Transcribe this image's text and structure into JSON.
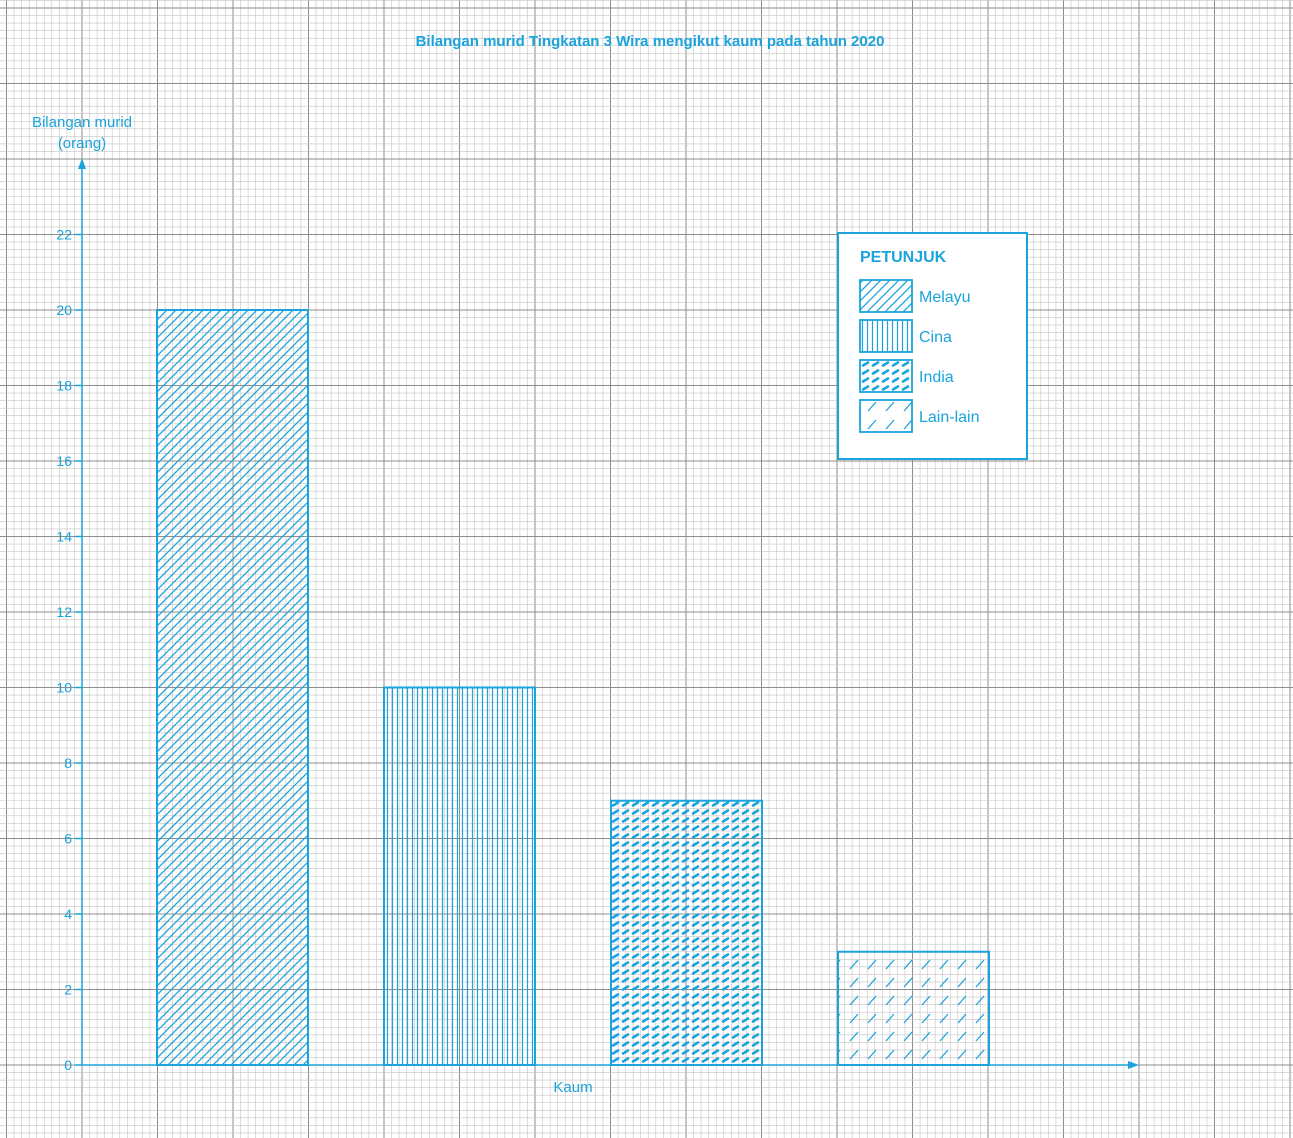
{
  "chart_data": {
    "type": "bar",
    "title": "Bilangan murid Tingkatan 3 Wira mengikut kaum pada tahun 2020",
    "ylabel_line1": "Bilangan murid",
    "ylabel_line2": "(orang)",
    "xlabel": "Kaum",
    "categories": [
      "Melayu",
      "Cina",
      "India",
      "Lain-lain"
    ],
    "values": [
      20,
      10,
      7,
      3
    ],
    "patterns": [
      "diagonal",
      "vertical",
      "dash",
      "sparse-diagonal"
    ],
    "ylim": [
      0,
      23
    ],
    "yticks": [
      0,
      2,
      4,
      6,
      8,
      10,
      12,
      14,
      16,
      18,
      20,
      22
    ],
    "grid": true,
    "legend_title": "PETUNJUK",
    "legend_position": "top-right",
    "colors": {
      "accent": "#1aa3dc",
      "grid_fine": "#c4c4c4",
      "grid_major": "#8d8d8d",
      "background": "#ffffff"
    }
  }
}
